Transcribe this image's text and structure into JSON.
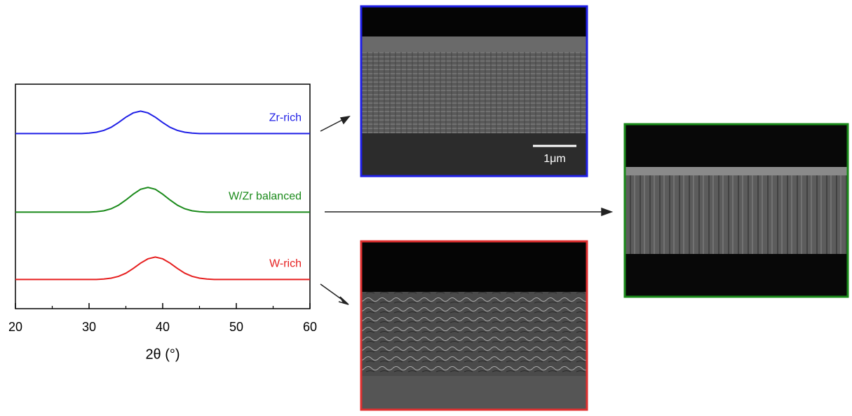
{
  "chart_data": {
    "type": "line",
    "xlabel": "2θ (°)",
    "x": [
      20,
      21,
      22,
      23,
      24,
      25,
      26,
      27,
      28,
      29,
      30,
      31,
      32,
      33,
      34,
      35,
      36,
      37,
      38,
      39,
      40,
      41,
      42,
      43,
      44,
      45,
      46,
      47,
      48,
      49,
      50,
      51,
      52,
      53,
      54,
      55,
      56,
      57,
      58,
      59,
      60
    ],
    "series": [
      {
        "name": "Zr-rich",
        "color": "#1f1fe6",
        "values": [
          78,
          78,
          78,
          78,
          78,
          78,
          78,
          78,
          78,
          78,
          78.2,
          78.6,
          79.4,
          80.8,
          82.9,
          85.3,
          87.2,
          88,
          87.2,
          85.3,
          82.9,
          80.8,
          79.4,
          78.6,
          78.2,
          78,
          78,
          78,
          78,
          78,
          78,
          78,
          78,
          78,
          78,
          78,
          78,
          78,
          78,
          78,
          78
        ]
      },
      {
        "name": "W/Zr balanced",
        "color": "#1a8a1a",
        "values": [
          43,
          43,
          43,
          43,
          43,
          43,
          43,
          43,
          43,
          43,
          43,
          43.2,
          43.6,
          44.5,
          46.1,
          48.4,
          51,
          53.2,
          54,
          53.2,
          51,
          48.4,
          46.1,
          44.5,
          43.6,
          43.2,
          43,
          43,
          43,
          43,
          43,
          43,
          43,
          43,
          43,
          43,
          43,
          43,
          43,
          43,
          43
        ]
      },
      {
        "name": "W-rich",
        "color": "#e61f1f",
        "values": [
          13,
          13,
          13,
          13,
          13,
          13,
          13,
          13,
          13,
          13,
          13,
          13,
          13.2,
          13.6,
          14.4,
          15.8,
          17.9,
          20.3,
          22.2,
          23,
          22.2,
          20.3,
          17.9,
          15.8,
          14.4,
          13.6,
          13.2,
          13,
          13,
          13,
          13,
          13,
          13,
          13,
          13,
          13,
          13,
          13,
          13,
          13,
          13
        ]
      }
    ],
    "xlim": [
      20,
      60
    ],
    "xticks": [
      20,
      30,
      40,
      50,
      60
    ],
    "xminorticks": [
      25,
      35,
      45,
      55
    ],
    "ylim": [
      0,
      100
    ]
  },
  "sem_scale_bar": "1μm"
}
